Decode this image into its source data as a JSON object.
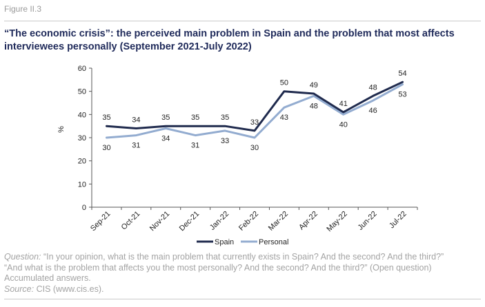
{
  "figure_label": "Figure II.3",
  "chart_data": {
    "type": "line",
    "title": "“The economic crisis”: the perceived main problem in Spain and the problem that most affects interviewees personally (September 2021-July 2022)",
    "ylabel": "%",
    "xlabel": "",
    "ylim": [
      0,
      60
    ],
    "yticks": [
      0,
      10,
      20,
      30,
      40,
      50,
      60
    ],
    "grid": false,
    "legend_position": "bottom-center",
    "categories": [
      "Sep-21",
      "Oct-21",
      "Nov-21",
      "Dec-21",
      "Jan-22",
      "Feb-22",
      "Mar-22",
      "Apr-22",
      "May-22",
      "Jun-22",
      "Jul-22"
    ],
    "series": [
      {
        "name": "Spain",
        "color": "#1f2a4d",
        "values": [
          35,
          34,
          35,
          35,
          35,
          33,
          50,
          49,
          41,
          48,
          54
        ],
        "labels": [
          "35",
          "34",
          "35",
          "35",
          "35",
          "33",
          "50",
          "49",
          "41",
          "48",
          "54"
        ]
      },
      {
        "name": "Personal",
        "color": "#93acd0",
        "values": [
          30,
          31,
          34,
          31,
          33,
          30,
          43,
          48,
          40,
          46,
          53
        ],
        "labels": [
          "30",
          "31",
          "34",
          "31",
          "33",
          "30",
          "43",
          "48",
          "40",
          "46",
          "53"
        ]
      }
    ]
  },
  "notes": {
    "question_label": "Question:",
    "question_line1": " “In your opinion, what is the main problem that currently exists in Spain? And the second? And the third?”",
    "question_line2": "“And what is the problem that affects you the most personally? And the second? And the third?” (Open question)",
    "question_line3": "Accumulated answers.",
    "source_label": "Source:",
    "source_text": " CIS (www.cis.es)."
  }
}
